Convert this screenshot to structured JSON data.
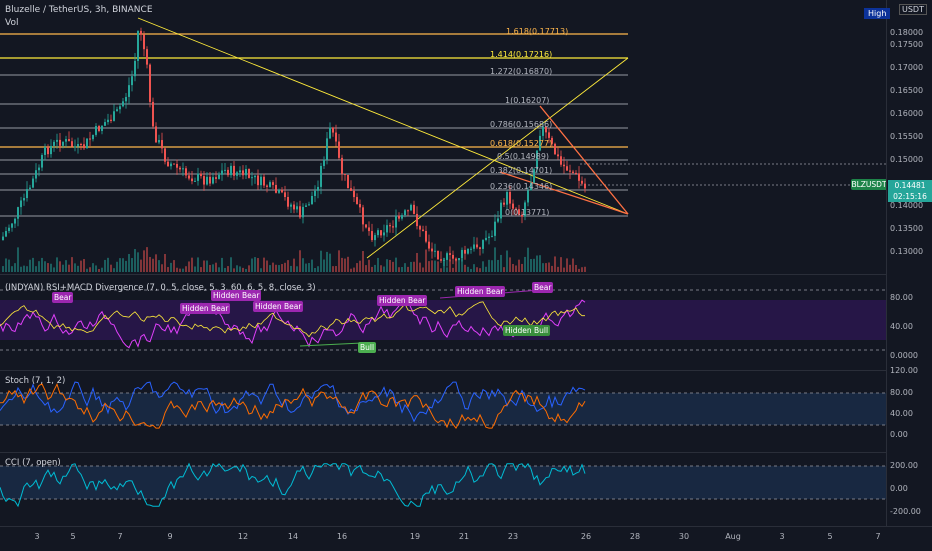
{
  "header": {
    "title": "Bluzelle / TetherUS, 3h, BINANCE",
    "vol_label": "Vol"
  },
  "price_axis": {
    "currency": "USDT",
    "high_label": "High",
    "ticks": [
      "0.18000",
      "0.17500",
      "0.17000",
      "0.16500",
      "0.16000",
      "0.15500",
      "0.15000",
      "0.14500",
      "0.14000",
      "0.13500",
      "0.13000"
    ],
    "current_symbol": "BLZUSDT",
    "current_price": "0.14481",
    "countdown": "02:15:16"
  },
  "fib_levels": [
    {
      "label": "1.618(0.17713)",
      "color": "#ffb74d"
    },
    {
      "label": "1.414(0.17216)",
      "color": "#ffeb3b"
    },
    {
      "label": "1.272(0.16870)",
      "color": "#b2b5be"
    },
    {
      "label": "1(0.16207)",
      "color": "#b2b5be"
    },
    {
      "label": "0.786(0.15686)",
      "color": "#b2b5be"
    },
    {
      "label": "0.618(0.15277)",
      "color": "#ffb74d"
    },
    {
      "label": "0.5(0.14989)",
      "color": "#b2b5be"
    },
    {
      "label": "0.382(0.14701)",
      "color": "#b2b5be"
    },
    {
      "label": "0.236(0.14346)",
      "color": "#b2b5be"
    },
    {
      "label": "0(0.13771)",
      "color": "#b2b5be"
    }
  ],
  "rsi_panel": {
    "label": "(INDYAN) RSI+MACD Divergence (7, 0, 5, close, 5, 3, 60, 6, 5, 8, close, 3)",
    "ticks": [
      "80.00",
      "40.00",
      "0.0000"
    ],
    "tags": [
      "Bear",
      "Hidden Bear",
      "Hidden Bear",
      "Hidden Bear",
      "Hidden Bear",
      "Hidden Bear",
      "Bear",
      "Bull",
      "Hidden Bull"
    ]
  },
  "stoch_panel": {
    "label": "Stoch (7, 1, 2)",
    "ticks": [
      "120.00",
      "80.00",
      "40.00",
      "0.00"
    ]
  },
  "cci_panel": {
    "label": "CCI (7, open)",
    "ticks": [
      "200.00",
      "0.00",
      "-200.00"
    ]
  },
  "time_axis": {
    "ticks": [
      "3",
      "5",
      "7",
      "9",
      "12",
      "14",
      "16",
      "19",
      "21",
      "23",
      "26",
      "28",
      "30",
      "Aug",
      "3",
      "5",
      "7"
    ]
  },
  "colors": {
    "up": "#26a69a",
    "down": "#ef5350",
    "bg": "#131722",
    "stoch_k": "#2962ff",
    "stoch_d": "#ff6d00",
    "cci": "#00bcd4",
    "rsi": "#9c27b0"
  }
}
